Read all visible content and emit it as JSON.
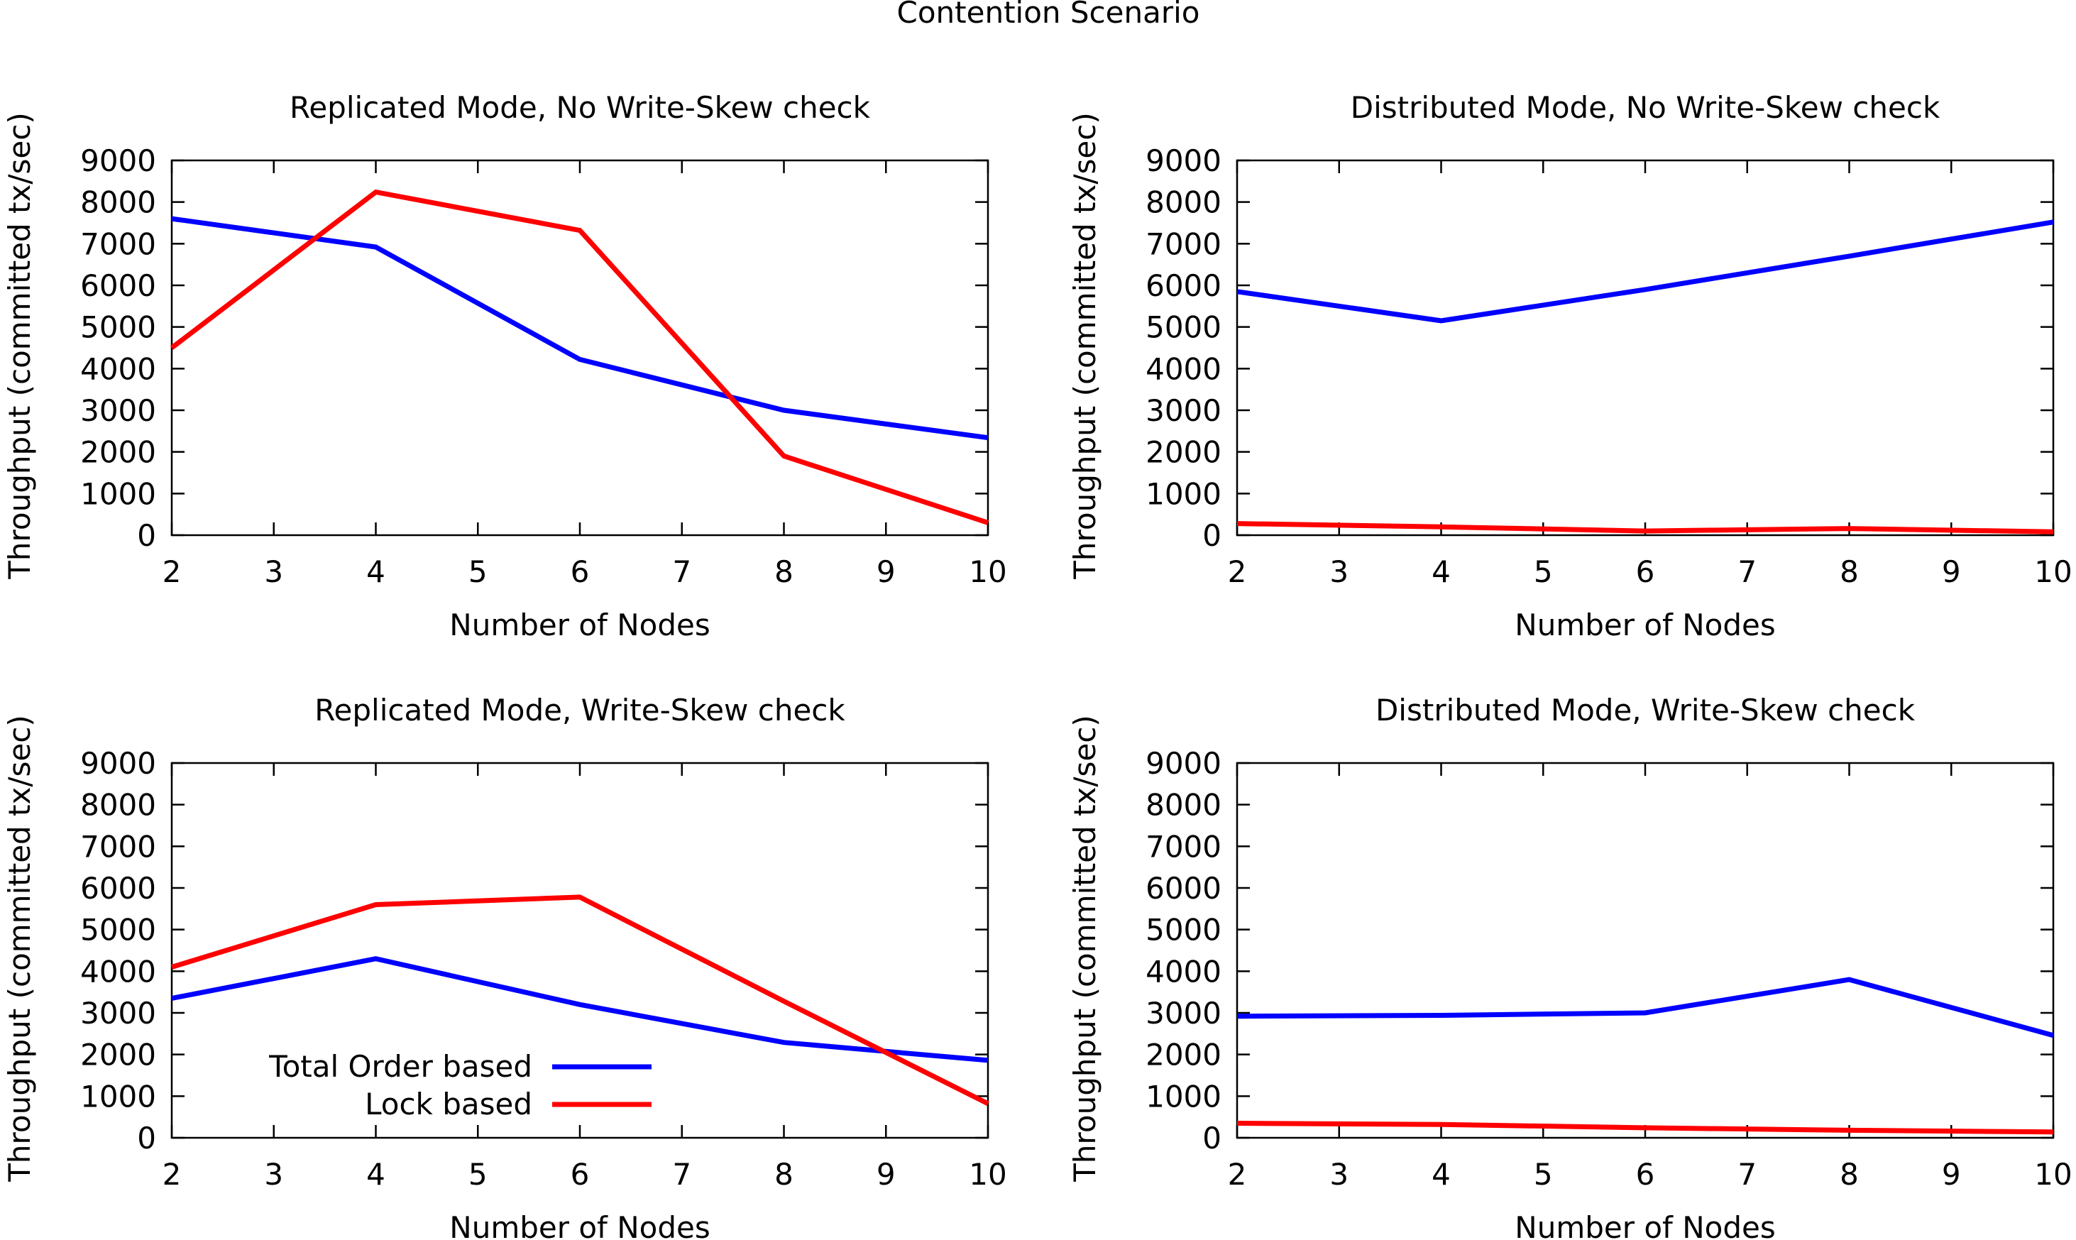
{
  "figure": {
    "title": "Contention Scenario"
  },
  "legend": {
    "placement": "lower-left of bottom-left panel",
    "entries": [
      {
        "label": "Total Order based",
        "color": "#0000ff"
      },
      {
        "label": "Lock based",
        "color": "#ff0000"
      }
    ]
  },
  "chart_data": [
    {
      "type": "line",
      "title": "Replicated Mode, No Write-Skew check",
      "xlabel": "Number of Nodes",
      "ylabel": "Throughput (committed tx/sec)",
      "xlim": [
        2,
        10
      ],
      "ylim": [
        0,
        9000
      ],
      "xticks": [
        2,
        3,
        4,
        5,
        6,
        7,
        8,
        9,
        10
      ],
      "yticks": [
        0,
        1000,
        2000,
        3000,
        4000,
        5000,
        6000,
        7000,
        8000,
        9000
      ],
      "x": [
        2,
        4,
        6,
        8,
        10
      ],
      "series": [
        {
          "name": "Total Order based",
          "color": "#0000ff",
          "values": [
            7600,
            6920,
            4220,
            3000,
            2340
          ]
        },
        {
          "name": "Lock based",
          "color": "#ff0000",
          "values": [
            4500,
            8240,
            7320,
            1900,
            300
          ]
        }
      ]
    },
    {
      "type": "line",
      "title": "Distributed Mode, No Write-Skew check",
      "xlabel": "Number of Nodes",
      "ylabel": "Throughput (committed tx/sec)",
      "xlim": [
        2,
        10
      ],
      "ylim": [
        0,
        9000
      ],
      "xticks": [
        2,
        3,
        4,
        5,
        6,
        7,
        8,
        9,
        10
      ],
      "yticks": [
        0,
        1000,
        2000,
        3000,
        4000,
        5000,
        6000,
        7000,
        8000,
        9000
      ],
      "x": [
        2,
        4,
        6,
        8,
        10
      ],
      "series": [
        {
          "name": "Total Order based",
          "color": "#0000ff",
          "values": [
            5850,
            5150,
            5900,
            6700,
            7520
          ]
        },
        {
          "name": "Lock based",
          "color": "#ff0000",
          "values": [
            280,
            200,
            100,
            160,
            80
          ]
        }
      ]
    },
    {
      "type": "line",
      "title": "Replicated Mode, Write-Skew check",
      "xlabel": "Number of Nodes",
      "ylabel": "Throughput (committed tx/sec)",
      "xlim": [
        2,
        10
      ],
      "ylim": [
        0,
        9000
      ],
      "xticks": [
        2,
        3,
        4,
        5,
        6,
        7,
        8,
        9,
        10
      ],
      "yticks": [
        0,
        1000,
        2000,
        3000,
        4000,
        5000,
        6000,
        7000,
        8000,
        9000
      ],
      "x": [
        2,
        4,
        6,
        8,
        10
      ],
      "series": [
        {
          "name": "Total Order based",
          "color": "#0000ff",
          "values": [
            3350,
            4300,
            3200,
            2290,
            1860
          ]
        },
        {
          "name": "Lock based",
          "color": "#ff0000",
          "values": [
            4100,
            5600,
            5780,
            3280,
            820
          ]
        }
      ]
    },
    {
      "type": "line",
      "title": "Distributed Mode, Write-Skew check",
      "xlabel": "Number of Nodes",
      "ylabel": "Throughput (committed tx/sec)",
      "xlim": [
        2,
        10
      ],
      "ylim": [
        0,
        9000
      ],
      "xticks": [
        2,
        3,
        4,
        5,
        6,
        7,
        8,
        9,
        10
      ],
      "yticks": [
        0,
        1000,
        2000,
        3000,
        4000,
        5000,
        6000,
        7000,
        8000,
        9000
      ],
      "x": [
        2,
        4,
        6,
        8,
        10
      ],
      "series": [
        {
          "name": "Total Order based",
          "color": "#0000ff",
          "values": [
            2920,
            2940,
            3000,
            3800,
            2460
          ]
        },
        {
          "name": "Lock based",
          "color": "#ff0000",
          "values": [
            350,
            320,
            240,
            180,
            140
          ]
        }
      ]
    }
  ]
}
